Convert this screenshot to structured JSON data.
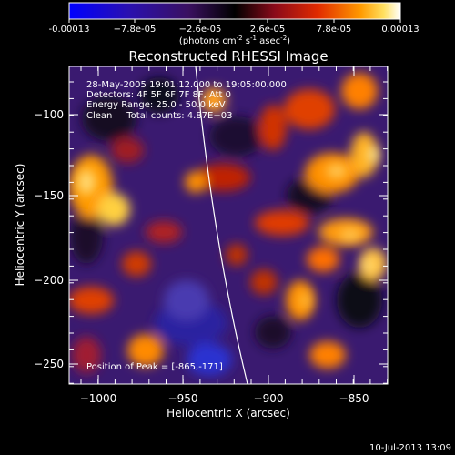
{
  "colorbar": {
    "ticks": [
      "-0.00013",
      "−7.8e-05",
      "−2.6e-05",
      "2.6e-05",
      "7.8e-05",
      "0.00013"
    ],
    "units_prefix": "(photons cm",
    "units_exp1": "-2",
    "units_mid": " s",
    "units_exp2": "-1",
    "units_suffix": " asec",
    "units_exp3": "-2",
    "units_close": ")"
  },
  "title": "Reconstructed RHESSI Image",
  "info": {
    "line1": "28-May-2005 19:01:12.000 to 19:05:00.000",
    "line2": "Detectors: 4F 5F 6F 7F 8F, Att 0",
    "line3": "Energy Range: 25.0 - 50.0 keV",
    "line4": "Clean     Total counts: 4.87E+03"
  },
  "peak_label": "Position of Peak = [-865,-171]",
  "xaxis": {
    "label": "Heliocentric X (arcsec)",
    "ticks": [
      "−1000",
      "−950",
      "−900",
      "−850"
    ]
  },
  "yaxis": {
    "label": "Heliocentric Y (arcsec)",
    "ticks": [
      "−100",
      "−150",
      "−200",
      "−250"
    ]
  },
  "timestamp": "10-Jul-2013 13:09",
  "colors": {
    "background": "#000000",
    "limb": "#ffffff"
  }
}
